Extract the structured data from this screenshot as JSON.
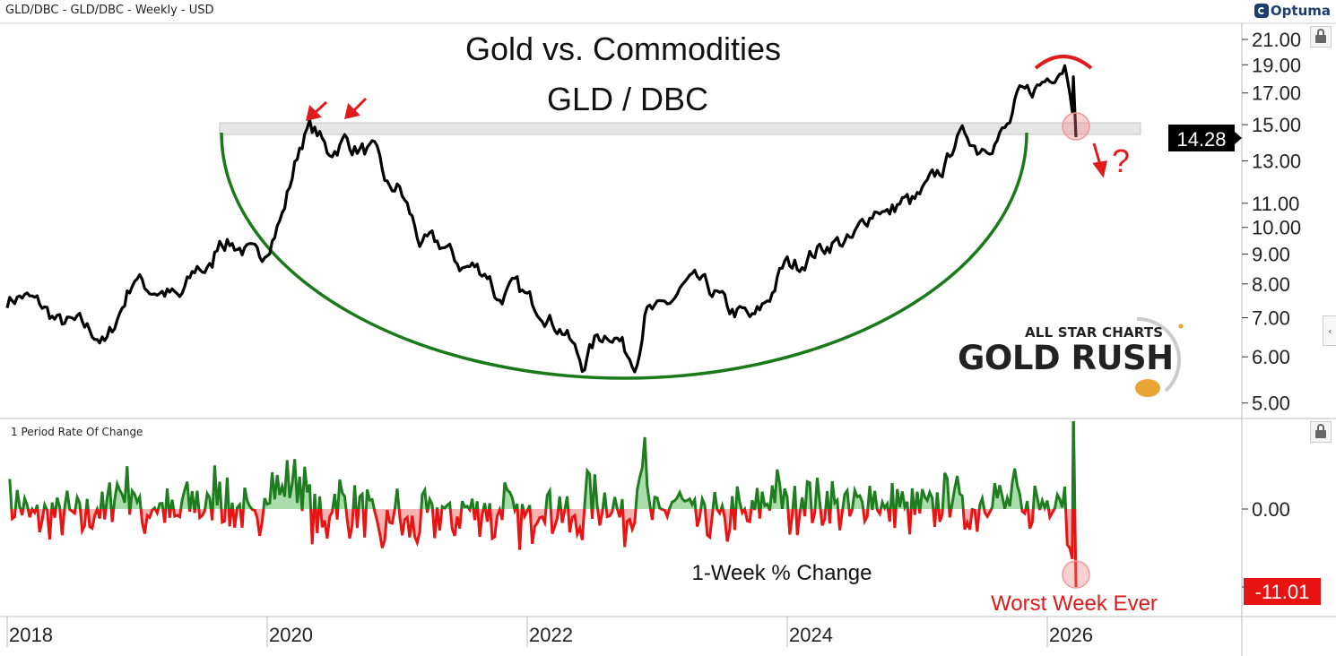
{
  "header": {
    "title": "GLD/DBC - GLD/DBC - Weekly - USD",
    "logo": "Optuma"
  },
  "annotations": {
    "title_line1": "Gold vs. Commodities",
    "title_line2": "GLD / DBC",
    "question_mark": "?",
    "roc_label": "1-Week % Change",
    "worst_week": "Worst Week Ever",
    "brand_line1": "ALL STAR CHARTS",
    "brand_line2": "GOLD RUSH"
  },
  "colors": {
    "line": "#000000",
    "arc": "#1a7a1a",
    "annotation": "#e01b1b",
    "up": "#1e7d1e",
    "down": "#e81414",
    "band": "#e6e6e6"
  },
  "chart_data": [
    {
      "type": "line",
      "title": "GLD/DBC",
      "scale": "log",
      "ylim": [
        4.8,
        22
      ],
      "yticks": [
        "21.00",
        "19.00",
        "17.00",
        "15.00",
        "13.00",
        "11.00",
        "10.00",
        "9.00",
        "8.00",
        "7.00",
        "6.00",
        "5.00"
      ],
      "last_value": "14.28",
      "resistance_level": 14.9,
      "x": [
        2018.0,
        2018.117,
        2018.255,
        2018.393,
        2018.566,
        2018.703,
        2018.759,
        2018.876,
        2018.979,
        2019.083,
        2019.255,
        2019.324,
        2019.462,
        2019.566,
        2019.634,
        2019.772,
        2019.945,
        2020.014,
        2020.117,
        2020.186,
        2020.255,
        2020.324,
        2020.393,
        2020.462,
        2020.531,
        2020.6,
        2020.669,
        2020.807,
        2020.876,
        2020.91,
        2021.014,
        2021.117,
        2021.186,
        2021.255,
        2021.359,
        2021.497,
        2021.6,
        2021.703,
        2021.772,
        2021.91,
        2022.014,
        2022.117,
        2022.186,
        2022.29,
        2022.428,
        2022.531,
        2022.634,
        2022.703,
        2022.772,
        2022.841,
        2022.91,
        2023.014,
        2023.117,
        2023.221,
        2023.324,
        2023.462,
        2023.566,
        2023.669,
        2023.738,
        2023.876,
        2023.979,
        2024.083,
        2024.221,
        2024.359,
        2024.497,
        2024.6,
        2024.703,
        2024.772,
        2024.876,
        2024.979,
        2025.048,
        2025.152,
        2025.221,
        2025.29,
        2025.393,
        2025.462,
        2025.6,
        2025.703,
        2025.772,
        2025.841,
        2025.945,
        2026.048,
        2026.138,
        2026.186,
        2026.221
      ],
      "values": [
        7.5,
        7.63,
        7.37,
        6.87,
        6.82,
        6.51,
        6.29,
        7.24,
        8.25,
        7.86,
        7.69,
        7.5,
        8.55,
        8.43,
        9.61,
        9.28,
        8.8,
        9.44,
        10.5,
        12.09,
        13.93,
        14.85,
        14.43,
        13.45,
        13.69,
        14.18,
        13.69,
        13.45,
        12.98,
        11.67,
        11.67,
        10.31,
        9.28,
        9.44,
        9.28,
        8.55,
        8.55,
        8.34,
        7.5,
        7.91,
        7.5,
        7.24,
        6.92,
        6.63,
        5.79,
        6.45,
        6.63,
        6.45,
        6.07,
        5.92,
        7.17,
        7.17,
        7.5,
        7.97,
        8.05,
        7.63,
        7.17,
        7.11,
        6.92,
        7.69,
        8.64,
        8.64,
        9.11,
        9.44,
        9.44,
        10.31,
        10.88,
        10.5,
        11.07,
        11.07,
        11.47,
        12.31,
        12.75,
        14.18,
        14.43,
        13.69,
        14.18,
        14.85,
        16.63,
        16.92,
        17.54,
        18.49,
        19.15,
        17.22,
        14.28
      ]
    },
    {
      "type": "bar",
      "title": "1 Period Rate Of Change",
      "ylim": [
        -13,
        11
      ],
      "yticks": [
        "0.00"
      ],
      "last_value": "-11.01",
      "last_change": -11.01
    }
  ],
  "xaxis": {
    "ticks": [
      "2018",
      "2020",
      "2022",
      "2024",
      "2026"
    ]
  }
}
